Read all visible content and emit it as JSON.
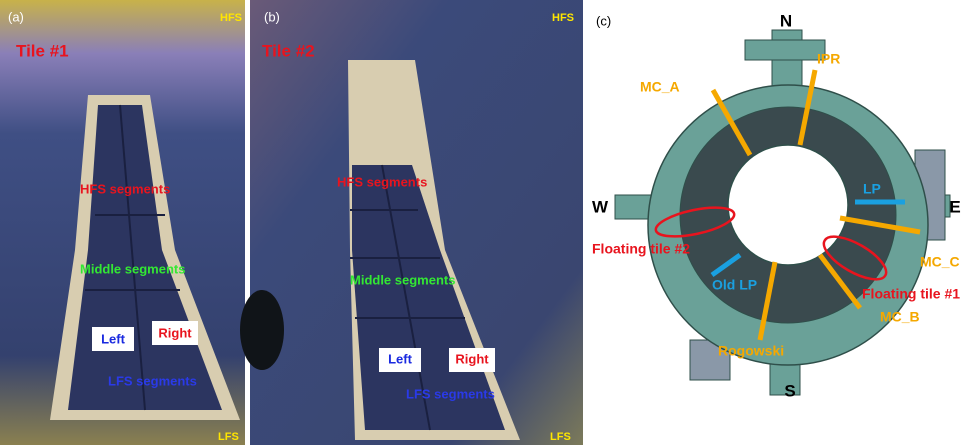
{
  "panel_a": {
    "label": "(a)",
    "title": "Tile #1",
    "hfs": "HFS",
    "lfs": "LFS",
    "segments": {
      "hfs": "HFS segments",
      "middle": "Middle segments",
      "lfs": "LFS segments"
    },
    "left": "Left",
    "right": "Right"
  },
  "panel_b": {
    "label": "(b)",
    "title": "Tile #2",
    "hfs": "HFS",
    "lfs": "LFS",
    "segments": {
      "hfs": "HFS segments",
      "middle": "Middle segments",
      "lfs": "LFS segments"
    },
    "left": "Left",
    "right": "Right"
  },
  "panel_c": {
    "label": "(c)",
    "directions": {
      "n": "N",
      "s": "S",
      "e": "E",
      "w": "W"
    },
    "labels": {
      "ipr": "IPR",
      "mc_a": "MC_A",
      "lp": "LP",
      "mc_c": "MC_C",
      "floating_1": "Floating tile #1",
      "mc_b": "MC_B",
      "rogowski": "Rogowski",
      "old_lp": "Old LP",
      "floating_2": "Floating tile #2"
    }
  }
}
